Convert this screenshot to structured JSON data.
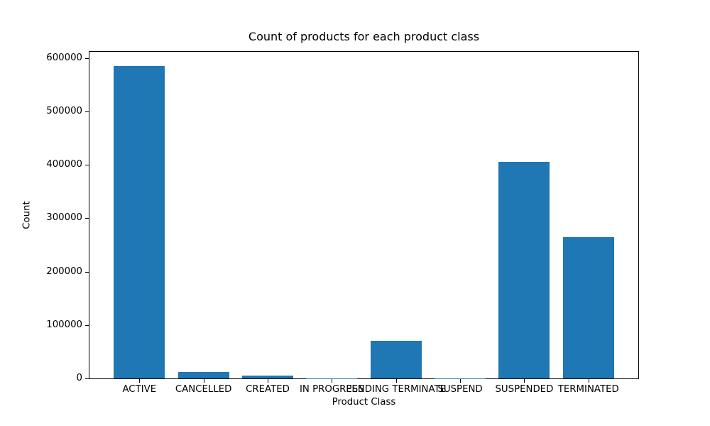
{
  "chart_data": {
    "type": "bar",
    "title": "Count of products for each product class",
    "xlabel": "Product Class",
    "ylabel": "Count",
    "categories": [
      "ACTIVE",
      "CANCELLED",
      "CREATED",
      "IN PROGRESS",
      "PENDING TERMINATE",
      "SUSPEND",
      "SUSPENDED",
      "TERMINATED"
    ],
    "values": [
      585000,
      12000,
      5000,
      500,
      70000,
      500,
      406000,
      264000
    ],
    "yticks": [
      0,
      100000,
      200000,
      300000,
      400000,
      500000,
      600000
    ],
    "ytick_labels": [
      "0",
      "100000",
      "200000",
      "300000",
      "400000",
      "500000",
      "600000"
    ],
    "ylim": [
      0,
      614000
    ],
    "bar_color": "#1f77b4",
    "text_color": "#000000",
    "background_color": "#ffffff",
    "grid": false,
    "legend": null
  }
}
